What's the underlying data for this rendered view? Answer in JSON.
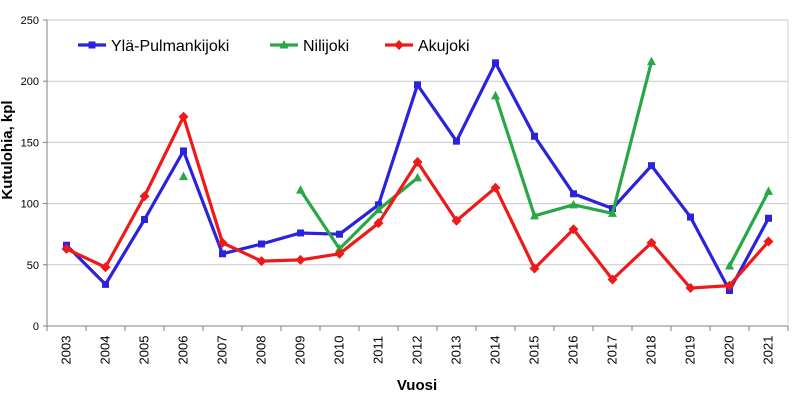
{
  "chart_data": {
    "type": "line",
    "xlabel": "Vuosi",
    "ylabel": "Kutulohia, kpl",
    "ylim": [
      0,
      250
    ],
    "yticks": [
      0,
      50,
      100,
      150,
      200,
      250
    ],
    "grid": true,
    "legend_position": "top-left",
    "categories": [
      "2003",
      "2004",
      "2005",
      "2006",
      "2007",
      "2008",
      "2009",
      "2010",
      "2011",
      "2012",
      "2013",
      "2014",
      "2015",
      "2016",
      "2017",
      "2018",
      "2019",
      "2020",
      "2021"
    ],
    "series": [
      {
        "name": "Ylä-Pulmankijoki",
        "color": "#2b22dd",
        "marker": "square",
        "values": [
          66,
          34,
          87,
          143,
          59,
          67,
          76,
          75,
          99,
          197,
          151,
          215,
          155,
          108,
          96,
          131,
          89,
          29,
          88
        ]
      },
      {
        "name": "Nilijoki",
        "color": "#28a745",
        "marker": "triangle",
        "values": [
          null,
          null,
          null,
          122,
          null,
          null,
          111,
          63,
          95,
          121,
          null,
          188,
          90,
          99,
          92,
          216,
          null,
          49,
          110
        ]
      },
      {
        "name": "Akujoki",
        "color": "#ee1a1a",
        "marker": "diamond",
        "values": [
          63,
          48,
          106,
          171,
          68,
          53,
          54,
          59,
          84,
          134,
          86,
          113,
          47,
          79,
          38,
          68,
          31,
          33,
          69
        ]
      }
    ]
  }
}
